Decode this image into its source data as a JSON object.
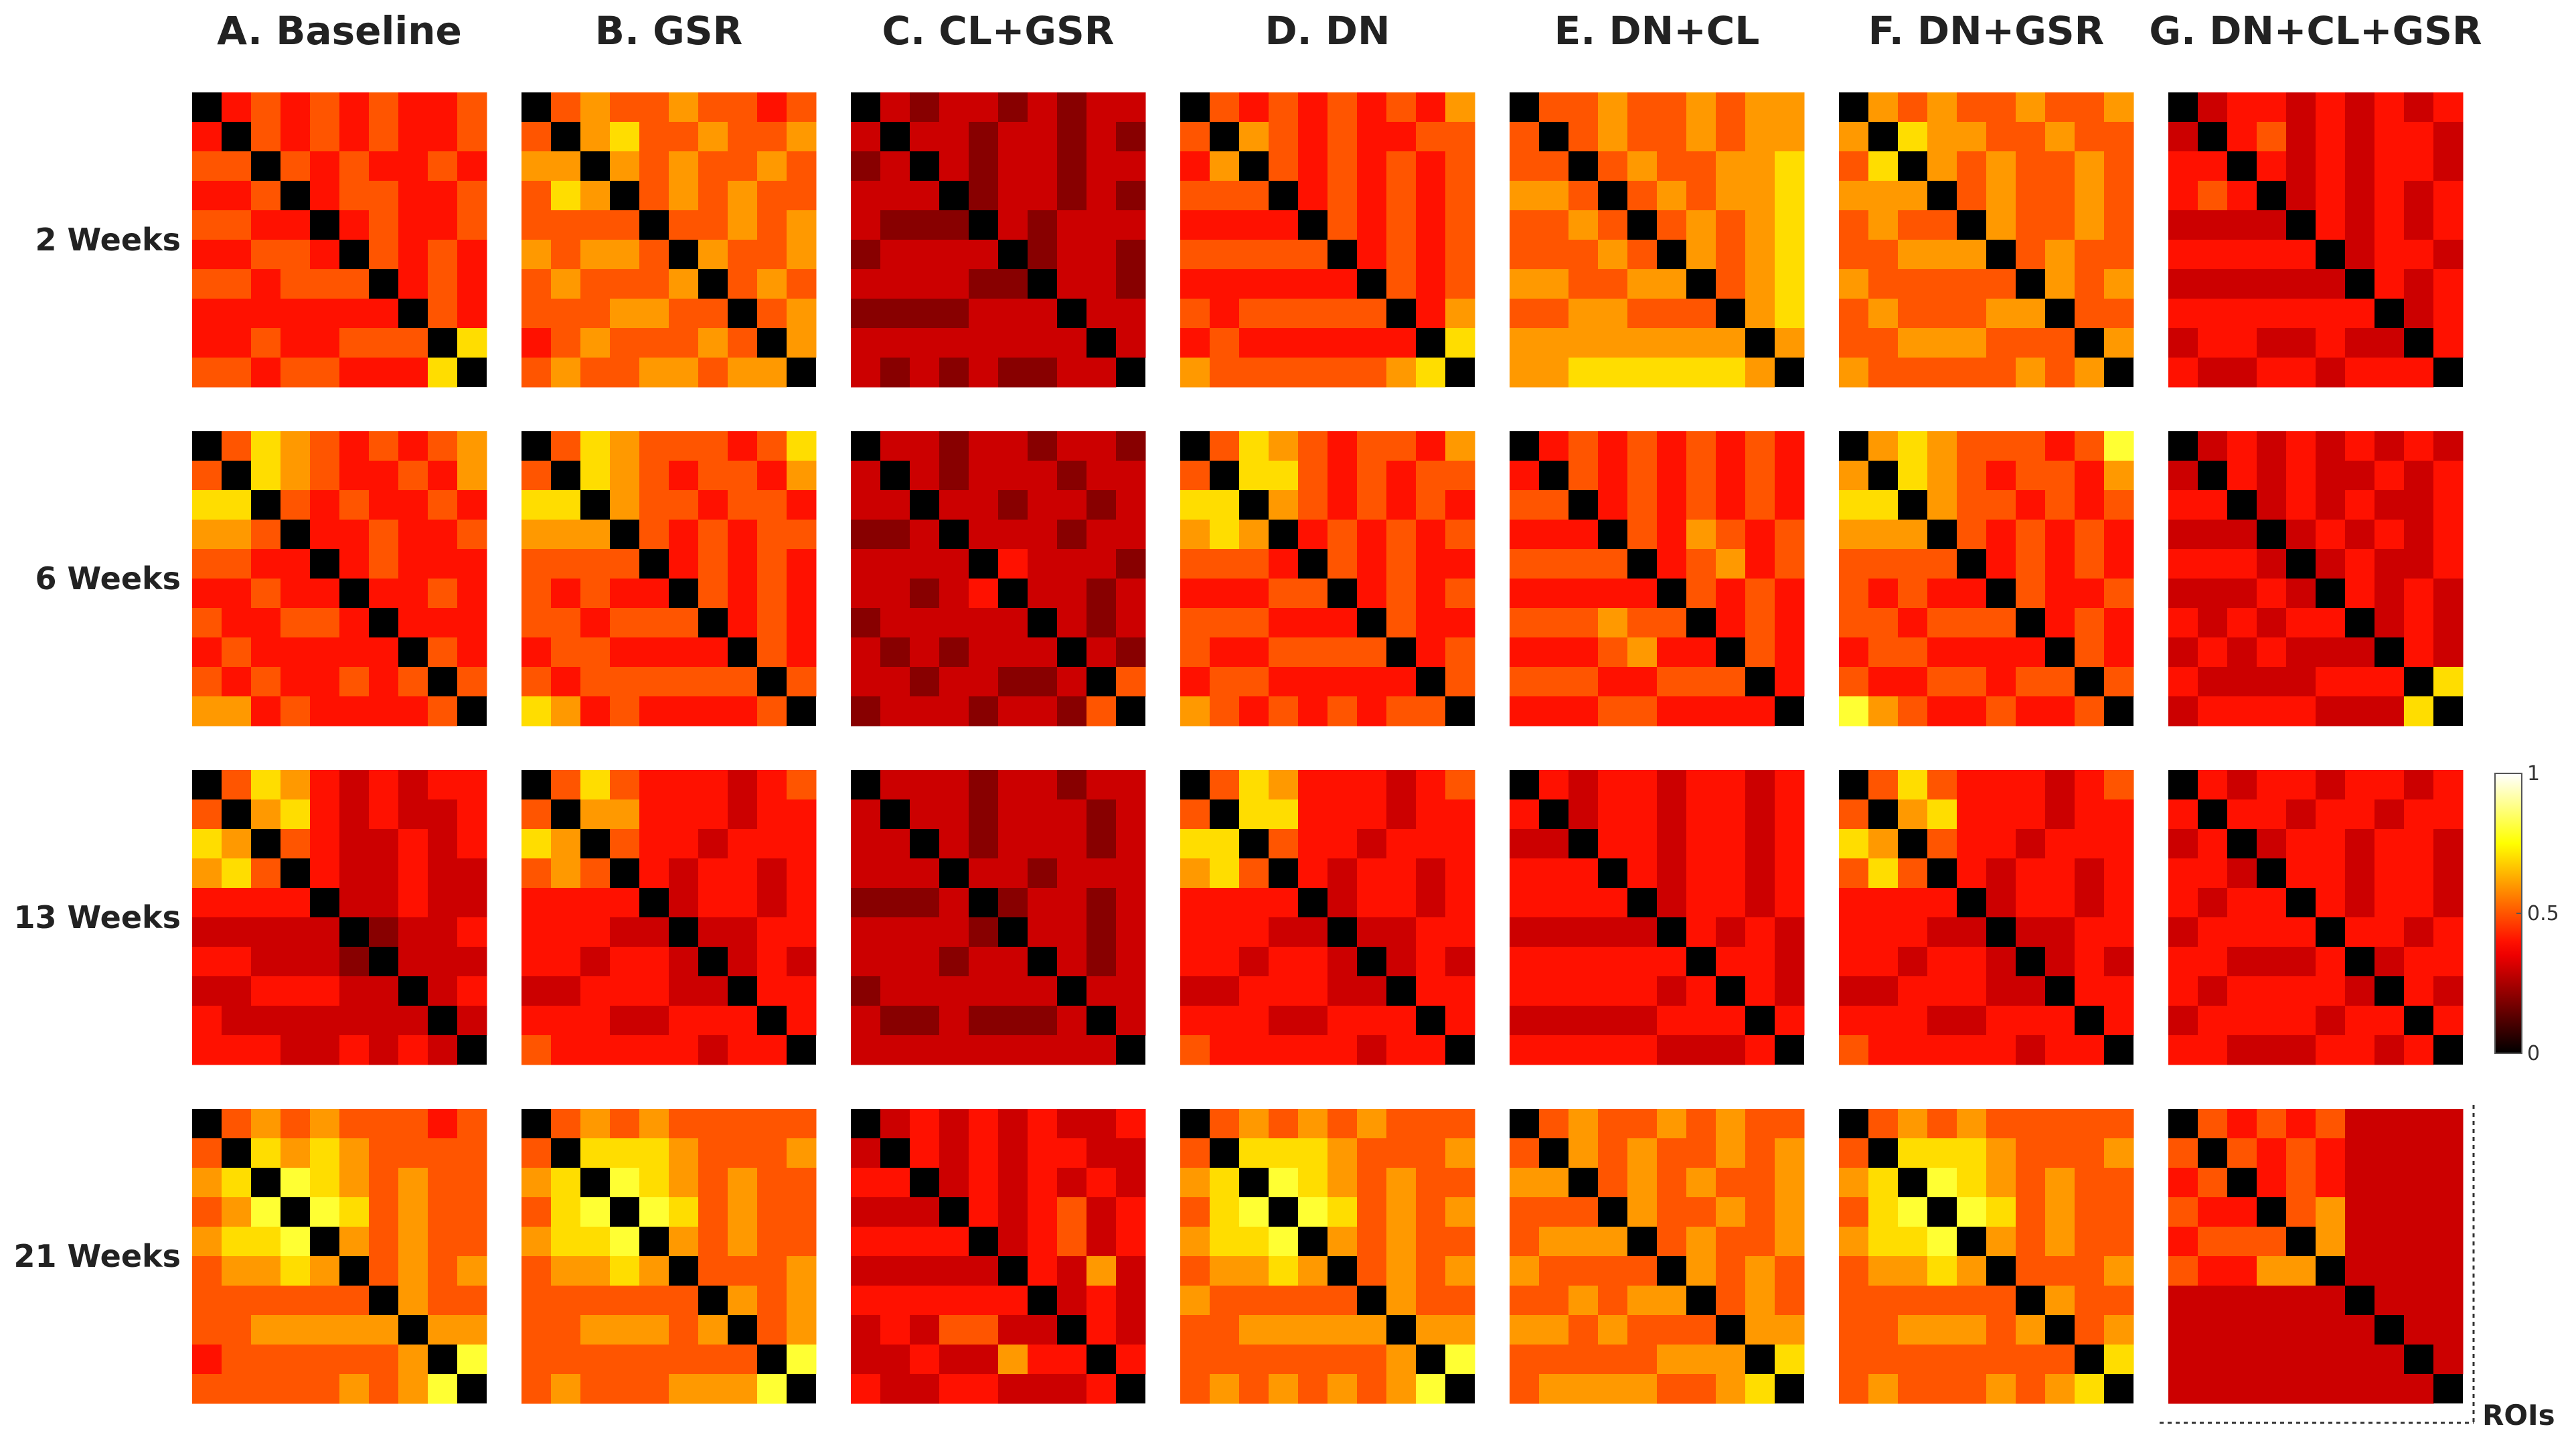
{
  "chart_data": {
    "type": "heatmap-grid",
    "columns": [
      "A. Baseline",
      "B. GSR",
      "C. CL+GSR",
      "D. DN",
      "E. DN+CL",
      "F. DN+GSR",
      "G. DN+CL+GSR"
    ],
    "rows": [
      "2 Weeks",
      "6 Weeks",
      "13 Weeks",
      "21 Weeks"
    ],
    "axis_label": "ROIs",
    "colorbar": {
      "lim": [
        0,
        1
      ],
      "ticks": [
        0,
        0.5,
        1
      ]
    },
    "panels": [
      [
        [
          0.4,
          0.5,
          0.4,
          0.5,
          0.4,
          0.5,
          0.4,
          0.4,
          0.5,
          0.5,
          0.4,
          0.5,
          0.4,
          0.5,
          0.4,
          0.4,
          0.5,
          0.5,
          0.4,
          0.5,
          0.4,
          0.4,
          0.5,
          0.4,
          0.4,
          0.5,
          0.5,
          0.4,
          0.4,
          0.5,
          0.4,
          0.5,
          0.4,
          0.4,
          0.5,
          0.5,
          0.4,
          0.5,
          0.4,
          0.4,
          0.5,
          0.4,
          0.5,
          0.4,
          0.7
        ],
        [
          0.5,
          0.6,
          0.5,
          0.5,
          0.6,
          0.5,
          0.5,
          0.4,
          0.5,
          0.6,
          0.7,
          0.5,
          0.5,
          0.6,
          0.5,
          0.5,
          0.6,
          0.6,
          0.5,
          0.6,
          0.5,
          0.5,
          0.6,
          0.5,
          0.5,
          0.6,
          0.5,
          0.6,
          0.5,
          0.5,
          0.5,
          0.5,
          0.6,
          0.5,
          0.6,
          0.6,
          0.5,
          0.5,
          0.6,
          0.5,
          0.6,
          0.5,
          0.5,
          0.6,
          0.6
        ],
        [
          0.3,
          0.2,
          0.3,
          0.3,
          0.2,
          0.3,
          0.2,
          0.3,
          0.3,
          0.3,
          0.3,
          0.2,
          0.3,
          0.3,
          0.2,
          0.3,
          0.2,
          0.3,
          0.2,
          0.3,
          0.3,
          0.2,
          0.3,
          0.3,
          0.2,
          0.3,
          0.3,
          0.2,
          0.3,
          0.2,
          0.3,
          0.2,
          0.3,
          0.3,
          0.3,
          0.2,
          0.3,
          0.3,
          0.2,
          0.3,
          0.3,
          0.2,
          0.3,
          0.3,
          0.3
        ],
        [
          0.5,
          0.4,
          0.5,
          0.4,
          0.5,
          0.4,
          0.5,
          0.4,
          0.6,
          0.6,
          0.5,
          0.4,
          0.5,
          0.4,
          0.4,
          0.5,
          0.5,
          0.5,
          0.4,
          0.5,
          0.4,
          0.5,
          0.4,
          0.5,
          0.4,
          0.5,
          0.4,
          0.5,
          0.4,
          0.5,
          0.5,
          0.4,
          0.5,
          0.4,
          0.5,
          0.4,
          0.5,
          0.4,
          0.5,
          0.5,
          0.4,
          0.5,
          0.4,
          0.6,
          0.7
        ],
        [
          0.5,
          0.5,
          0.6,
          0.5,
          0.5,
          0.6,
          0.5,
          0.6,
          0.6,
          0.5,
          0.6,
          0.5,
          0.5,
          0.6,
          0.5,
          0.6,
          0.6,
          0.5,
          0.6,
          0.5,
          0.5,
          0.6,
          0.6,
          0.7,
          0.5,
          0.6,
          0.5,
          0.6,
          0.6,
          0.7,
          0.5,
          0.6,
          0.5,
          0.6,
          0.7,
          0.6,
          0.5,
          0.6,
          0.7,
          0.5,
          0.6,
          0.7,
          0.6,
          0.7,
          0.6
        ],
        [
          0.6,
          0.5,
          0.6,
          0.5,
          0.5,
          0.6,
          0.5,
          0.5,
          0.6,
          0.7,
          0.6,
          0.6,
          0.5,
          0.5,
          0.6,
          0.5,
          0.5,
          0.6,
          0.5,
          0.6,
          0.5,
          0.5,
          0.6,
          0.5,
          0.5,
          0.6,
          0.5,
          0.5,
          0.6,
          0.5,
          0.6,
          0.5,
          0.5,
          0.6,
          0.5,
          0.5,
          0.6,
          0.5,
          0.5,
          0.6,
          0.5,
          0.6,
          0.5,
          0.5,
          0.6
        ],
        [
          0.3,
          0.4,
          0.4,
          0.3,
          0.4,
          0.3,
          0.4,
          0.3,
          0.4,
          0.4,
          0.5,
          0.3,
          0.4,
          0.3,
          0.4,
          0.4,
          0.3,
          0.4,
          0.3,
          0.4,
          0.3,
          0.4,
          0.4,
          0.3,
          0.3,
          0.4,
          0.3,
          0.4,
          0.3,
          0.4,
          0.4,
          0.3,
          0.4,
          0.3,
          0.4,
          0.3,
          0.4,
          0.4,
          0.3,
          0.4,
          0.3,
          0.4,
          0.3,
          0.4,
          0.4
        ]
      ],
      [
        [
          0.5,
          0.7,
          0.6,
          0.5,
          0.4,
          0.5,
          0.4,
          0.5,
          0.6,
          0.7,
          0.6,
          0.5,
          0.4,
          0.4,
          0.5,
          0.4,
          0.6,
          0.5,
          0.4,
          0.5,
          0.4,
          0.4,
          0.5,
          0.4,
          0.4,
          0.4,
          0.5,
          0.4,
          0.4,
          0.5,
          0.4,
          0.5,
          0.4,
          0.4,
          0.4,
          0.4,
          0.4,
          0.5,
          0.4,
          0.4,
          0.4,
          0.4,
          0.5,
          0.4,
          0.5
        ],
        [
          0.5,
          0.7,
          0.6,
          0.5,
          0.5,
          0.5,
          0.4,
          0.5,
          0.7,
          0.7,
          0.6,
          0.5,
          0.4,
          0.5,
          0.5,
          0.4,
          0.6,
          0.6,
          0.5,
          0.5,
          0.4,
          0.5,
          0.5,
          0.4,
          0.5,
          0.4,
          0.5,
          0.4,
          0.5,
          0.5,
          0.4,
          0.5,
          0.4,
          0.5,
          0.4,
          0.5,
          0.4,
          0.5,
          0.4,
          0.4,
          0.5,
          0.4,
          0.5,
          0.4,
          0.5
        ],
        [
          0.3,
          0.3,
          0.2,
          0.3,
          0.3,
          0.2,
          0.3,
          0.3,
          0.2,
          0.3,
          0.2,
          0.3,
          0.3,
          0.3,
          0.2,
          0.3,
          0.3,
          0.3,
          0.3,
          0.2,
          0.3,
          0.3,
          0.2,
          0.3,
          0.3,
          0.3,
          0.3,
          0.2,
          0.3,
          0.3,
          0.4,
          0.3,
          0.3,
          0.3,
          0.2,
          0.3,
          0.3,
          0.2,
          0.3,
          0.3,
          0.2,
          0.3,
          0.3,
          0.2,
          0.5
        ],
        [
          0.5,
          0.7,
          0.6,
          0.5,
          0.4,
          0.5,
          0.5,
          0.4,
          0.6,
          0.7,
          0.7,
          0.5,
          0.4,
          0.5,
          0.4,
          0.5,
          0.5,
          0.6,
          0.5,
          0.4,
          0.5,
          0.4,
          0.5,
          0.4,
          0.4,
          0.5,
          0.4,
          0.5,
          0.4,
          0.5,
          0.5,
          0.4,
          0.5,
          0.4,
          0.4,
          0.4,
          0.5,
          0.4,
          0.5,
          0.5,
          0.4,
          0.4,
          0.4,
          0.5,
          0.5
        ],
        [
          0.4,
          0.5,
          0.4,
          0.5,
          0.4,
          0.5,
          0.4,
          0.5,
          0.4,
          0.5,
          0.4,
          0.5,
          0.4,
          0.5,
          0.4,
          0.5,
          0.4,
          0.4,
          0.5,
          0.4,
          0.5,
          0.4,
          0.5,
          0.4,
          0.5,
          0.4,
          0.6,
          0.5,
          0.4,
          0.5,
          0.4,
          0.5,
          0.6,
          0.4,
          0.5,
          0.5,
          0.4,
          0.5,
          0.4,
          0.4,
          0.5,
          0.4,
          0.5,
          0.4,
          0.4
        ],
        [
          0.6,
          0.7,
          0.6,
          0.5,
          0.5,
          0.5,
          0.4,
          0.5,
          0.8,
          0.7,
          0.6,
          0.5,
          0.4,
          0.5,
          0.5,
          0.4,
          0.6,
          0.6,
          0.5,
          0.5,
          0.4,
          0.5,
          0.4,
          0.5,
          0.5,
          0.4,
          0.5,
          0.4,
          0.5,
          0.4,
          0.4,
          0.5,
          0.4,
          0.5,
          0.4,
          0.5,
          0.4,
          0.4,
          0.5,
          0.4,
          0.5,
          0.4,
          0.5,
          0.4,
          0.5
        ],
        [
          0.3,
          0.4,
          0.3,
          0.4,
          0.3,
          0.4,
          0.3,
          0.4,
          0.3,
          0.4,
          0.3,
          0.4,
          0.3,
          0.3,
          0.4,
          0.3,
          0.4,
          0.3,
          0.4,
          0.3,
          0.4,
          0.3,
          0.3,
          0.4,
          0.3,
          0.4,
          0.3,
          0.4,
          0.3,
          0.4,
          0.3,
          0.4,
          0.3,
          0.3,
          0.4,
          0.4,
          0.3,
          0.4,
          0.3,
          0.3,
          0.4,
          0.3,
          0.4,
          0.3,
          0.7
        ]
      ],
      [
        [
          0.5,
          0.7,
          0.6,
          0.4,
          0.3,
          0.4,
          0.3,
          0.4,
          0.4,
          0.6,
          0.7,
          0.4,
          0.3,
          0.4,
          0.3,
          0.3,
          0.4,
          0.5,
          0.4,
          0.3,
          0.3,
          0.4,
          0.3,
          0.4,
          0.4,
          0.3,
          0.3,
          0.4,
          0.3,
          0.3,
          0.3,
          0.3,
          0.4,
          0.3,
          0.3,
          0.2,
          0.3,
          0.3,
          0.4,
          0.3,
          0.3,
          0.3,
          0.3,
          0.4,
          0.3
        ],
        [
          0.5,
          0.7,
          0.5,
          0.4,
          0.4,
          0.4,
          0.3,
          0.4,
          0.5,
          0.6,
          0.6,
          0.4,
          0.4,
          0.4,
          0.3,
          0.4,
          0.4,
          0.5,
          0.4,
          0.4,
          0.3,
          0.4,
          0.4,
          0.4,
          0.4,
          0.3,
          0.4,
          0.4,
          0.3,
          0.4,
          0.3,
          0.4,
          0.4,
          0.3,
          0.4,
          0.3,
          0.3,
          0.4,
          0.4,
          0.3,
          0.4,
          0.3,
          0.4,
          0.4,
          0.4
        ],
        [
          0.3,
          0.3,
          0.3,
          0.2,
          0.3,
          0.3,
          0.2,
          0.3,
          0.3,
          0.3,
          0.3,
          0.2,
          0.3,
          0.3,
          0.3,
          0.2,
          0.3,
          0.3,
          0.2,
          0.3,
          0.3,
          0.3,
          0.2,
          0.3,
          0.3,
          0.3,
          0.2,
          0.3,
          0.3,
          0.3,
          0.2,
          0.3,
          0.3,
          0.2,
          0.3,
          0.3,
          0.3,
          0.2,
          0.3,
          0.3,
          0.2,
          0.3,
          0.3,
          0.3,
          0.3
        ],
        [
          0.5,
          0.7,
          0.6,
          0.4,
          0.4,
          0.4,
          0.3,
          0.4,
          0.5,
          0.7,
          0.7,
          0.4,
          0.4,
          0.4,
          0.3,
          0.4,
          0.4,
          0.5,
          0.4,
          0.4,
          0.3,
          0.4,
          0.4,
          0.4,
          0.4,
          0.3,
          0.4,
          0.4,
          0.3,
          0.4,
          0.3,
          0.4,
          0.4,
          0.3,
          0.4,
          0.3,
          0.3,
          0.4,
          0.4,
          0.3,
          0.4,
          0.3,
          0.4,
          0.4,
          0.4
        ],
        [
          0.4,
          0.3,
          0.4,
          0.4,
          0.3,
          0.4,
          0.4,
          0.3,
          0.4,
          0.3,
          0.4,
          0.4,
          0.3,
          0.4,
          0.4,
          0.3,
          0.4,
          0.4,
          0.4,
          0.3,
          0.4,
          0.4,
          0.3,
          0.4,
          0.4,
          0.3,
          0.4,
          0.4,
          0.3,
          0.4,
          0.3,
          0.4,
          0.4,
          0.3,
          0.4,
          0.4,
          0.3,
          0.4,
          0.3,
          0.4,
          0.4,
          0.3,
          0.4,
          0.3,
          0.4
        ],
        [
          0.5,
          0.7,
          0.5,
          0.4,
          0.4,
          0.4,
          0.3,
          0.4,
          0.5,
          0.6,
          0.7,
          0.4,
          0.4,
          0.4,
          0.3,
          0.4,
          0.4,
          0.5,
          0.4,
          0.4,
          0.3,
          0.4,
          0.4,
          0.4,
          0.4,
          0.3,
          0.4,
          0.4,
          0.3,
          0.4,
          0.3,
          0.4,
          0.4,
          0.3,
          0.4,
          0.3,
          0.3,
          0.4,
          0.4,
          0.3,
          0.4,
          0.3,
          0.4,
          0.4,
          0.4
        ],
        [
          0.4,
          0.3,
          0.4,
          0.4,
          0.3,
          0.4,
          0.4,
          0.3,
          0.4,
          0.4,
          0.4,
          0.3,
          0.4,
          0.4,
          0.3,
          0.4,
          0.4,
          0.3,
          0.4,
          0.4,
          0.3,
          0.4,
          0.4,
          0.3,
          0.4,
          0.4,
          0.3,
          0.4,
          0.4,
          0.3,
          0.4,
          0.3,
          0.4,
          0.4,
          0.3,
          0.4,
          0.4,
          0.3,
          0.4,
          0.3,
          0.4,
          0.4,
          0.4,
          0.3,
          0.4
        ]
      ],
      [
        [
          0.5,
          0.6,
          0.5,
          0.6,
          0.5,
          0.5,
          0.5,
          0.4,
          0.5,
          0.7,
          0.6,
          0.7,
          0.6,
          0.5,
          0.5,
          0.5,
          0.5,
          0.8,
          0.7,
          0.6,
          0.5,
          0.6,
          0.5,
          0.5,
          0.8,
          0.7,
          0.5,
          0.6,
          0.5,
          0.5,
          0.6,
          0.5,
          0.6,
          0.5,
          0.5,
          0.5,
          0.6,
          0.5,
          0.6,
          0.6,
          0.5,
          0.5,
          0.6,
          0.6,
          0.8
        ],
        [
          0.5,
          0.6,
          0.5,
          0.6,
          0.5,
          0.5,
          0.5,
          0.5,
          0.5,
          0.7,
          0.7,
          0.7,
          0.6,
          0.5,
          0.5,
          0.5,
          0.6,
          0.8,
          0.7,
          0.6,
          0.5,
          0.6,
          0.5,
          0.5,
          0.8,
          0.7,
          0.5,
          0.6,
          0.5,
          0.5,
          0.6,
          0.5,
          0.6,
          0.5,
          0.5,
          0.5,
          0.5,
          0.5,
          0.6,
          0.6,
          0.5,
          0.6,
          0.5,
          0.6,
          0.8
        ],
        [
          0.3,
          0.4,
          0.3,
          0.4,
          0.3,
          0.4,
          0.3,
          0.3,
          0.4,
          0.4,
          0.3,
          0.4,
          0.3,
          0.4,
          0.4,
          0.3,
          0.3,
          0.3,
          0.4,
          0.3,
          0.4,
          0.3,
          0.4,
          0.3,
          0.4,
          0.3,
          0.4,
          0.5,
          0.3,
          0.4,
          0.3,
          0.4,
          0.5,
          0.3,
          0.4,
          0.4,
          0.3,
          0.6,
          0.3,
          0.3,
          0.4,
          0.3,
          0.4,
          0.3,
          0.4
        ],
        [
          0.5,
          0.6,
          0.5,
          0.6,
          0.5,
          0.6,
          0.5,
          0.5,
          0.5,
          0.7,
          0.7,
          0.7,
          0.6,
          0.5,
          0.5,
          0.5,
          0.6,
          0.8,
          0.7,
          0.6,
          0.5,
          0.6,
          0.5,
          0.5,
          0.8,
          0.7,
          0.5,
          0.6,
          0.5,
          0.6,
          0.6,
          0.5,
          0.6,
          0.5,
          0.5,
          0.5,
          0.6,
          0.5,
          0.6,
          0.6,
          0.5,
          0.5,
          0.6,
          0.6,
          0.8
        ],
        [
          0.5,
          0.6,
          0.5,
          0.5,
          0.6,
          0.5,
          0.6,
          0.5,
          0.5,
          0.6,
          0.5,
          0.6,
          0.5,
          0.5,
          0.6,
          0.5,
          0.6,
          0.5,
          0.6,
          0.5,
          0.6,
          0.5,
          0.5,
          0.6,
          0.6,
          0.5,
          0.5,
          0.6,
          0.5,
          0.6,
          0.5,
          0.6,
          0.5,
          0.5,
          0.6,
          0.6,
          0.5,
          0.6,
          0.5,
          0.5,
          0.6,
          0.5,
          0.6,
          0.6,
          0.7
        ],
        [
          0.5,
          0.6,
          0.5,
          0.6,
          0.5,
          0.5,
          0.5,
          0.5,
          0.5,
          0.7,
          0.7,
          0.7,
          0.6,
          0.5,
          0.5,
          0.5,
          0.6,
          0.8,
          0.7,
          0.6,
          0.5,
          0.6,
          0.5,
          0.5,
          0.8,
          0.7,
          0.5,
          0.6,
          0.5,
          0.5,
          0.6,
          0.5,
          0.6,
          0.5,
          0.5,
          0.5,
          0.5,
          0.5,
          0.6,
          0.6,
          0.5,
          0.5,
          0.5,
          0.6,
          0.7
        ],
        [
          0.5,
          0.4,
          0.5,
          0.4,
          0.5,
          0.3,
          0.3,
          0.3,
          0.3,
          0.5,
          0.4,
          0.5,
          0.4,
          0.3,
          0.3,
          0.3,
          0.3,
          0.4,
          0.5,
          0.4,
          0.3,
          0.3,
          0.3,
          0.3,
          0.5,
          0.6,
          0.3,
          0.3,
          0.3,
          0.3,
          0.6,
          0.3,
          0.3,
          0.3,
          0.3,
          0.3,
          0.3,
          0.3,
          0.3,
          0.3,
          0.3,
          0.3,
          0.3,
          0.3,
          0.3
        ]
      ]
    ]
  }
}
